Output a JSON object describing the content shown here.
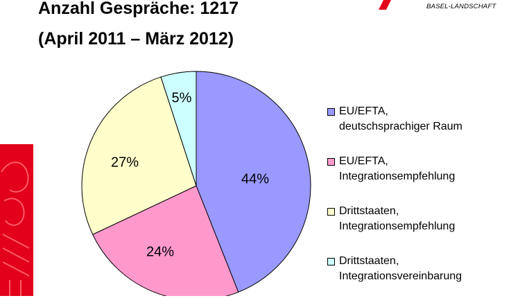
{
  "header": {
    "title": "Anzahl Gespräche: 1217",
    "subtitle": "(April 2011 – März 2012)",
    "brand_text": "BASEL-LANDSCHAFT",
    "brand_color": "#e2001a"
  },
  "chart_data": {
    "type": "pie",
    "title": "Anzahl Gespräche: 1217",
    "subtitle": "(April 2011 – März 2012)",
    "start_angle_deg": 0,
    "direction": "clockwise",
    "legend_position": "right",
    "slices": [
      {
        "label": "EU/EFTA,\ndeutschsprachiger Raum",
        "value": 44,
        "value_label": "44%",
        "color": "#9999ff"
      },
      {
        "label": "EU/EFTA,\nIntegrationsempfehlung",
        "value": 24,
        "value_label": "24%",
        "color": "#ff99cc"
      },
      {
        "label": "Drittstaaten,\nIntegrationsempfehlung",
        "value": 27,
        "value_label": "27%",
        "color": "#ffffcc"
      },
      {
        "label": "Drittstaaten,\nIntegrationsvereinbarung",
        "value": 5,
        "value_label": "5%",
        "color": "#ccffff"
      }
    ]
  }
}
